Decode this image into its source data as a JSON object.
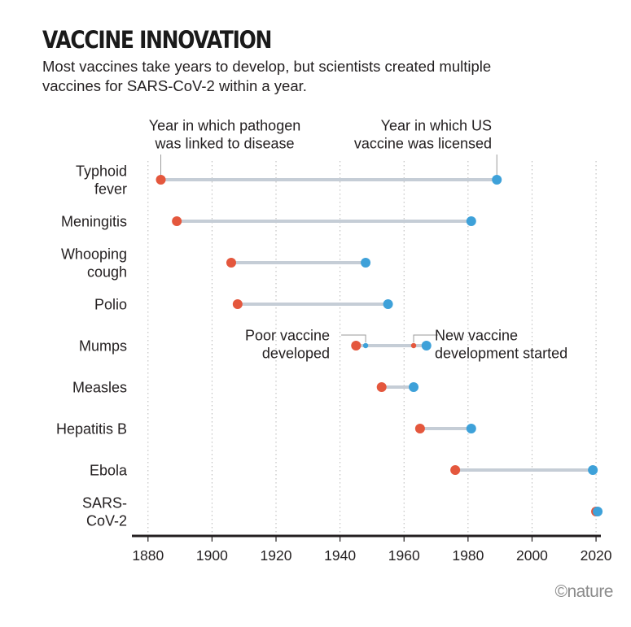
{
  "title": "VACCINE INNOVATION",
  "subtitle": "Most vaccines take years to develop, but scientists created multiple vaccines for SARS-CoV-2 within a year.",
  "credit": "©nature",
  "colors": {
    "linked": "#e4573d",
    "licensed": "#3ea1d9",
    "bar": "#c5cdd6",
    "axis": "#231f20",
    "grid": "#b7b7b7",
    "leader": "#9a9a9a"
  },
  "chart_data": {
    "type": "dumbbell",
    "xlim": [
      1877,
      2021
    ],
    "xticks": [
      1880,
      1900,
      1920,
      1940,
      1960,
      1980,
      2000,
      2020
    ],
    "grid": "vertical dashed",
    "series_labels": {
      "start": [
        "Year in which pathogen",
        "was linked to disease"
      ],
      "end": [
        "Year in which US",
        "vaccine was licensed"
      ]
    },
    "rows": [
      {
        "label": [
          "Typhoid",
          "fever"
        ],
        "start": 1884,
        "end": 1989
      },
      {
        "label": [
          "Meningitis"
        ],
        "start": 1889,
        "end": 1981
      },
      {
        "label": [
          "Whooping",
          "cough"
        ],
        "start": 1906,
        "end": 1948
      },
      {
        "label": [
          "Polio"
        ],
        "start": 1908,
        "end": 1955
      },
      {
        "label": [
          "Mumps"
        ],
        "start": 1945,
        "end": 1967,
        "mid_events": [
          1948,
          1963
        ]
      },
      {
        "label": [
          "Measles"
        ],
        "start": 1953,
        "end": 1963
      },
      {
        "label": [
          "Hepatitis B"
        ],
        "start": 1965,
        "end": 1981
      },
      {
        "label": [
          "Ebola"
        ],
        "start": 1976,
        "end": 2019
      },
      {
        "label": [
          "SARS-",
          "CoV-2"
        ],
        "start": 2020,
        "end": 2020
      }
    ],
    "annotations": {
      "poor_vaccine": {
        "year": 1948,
        "text": [
          "Poor vaccine",
          "developed"
        ]
      },
      "new_vaccine": {
        "year": 1963,
        "text": [
          "New vaccine",
          "development started"
        ]
      }
    }
  }
}
